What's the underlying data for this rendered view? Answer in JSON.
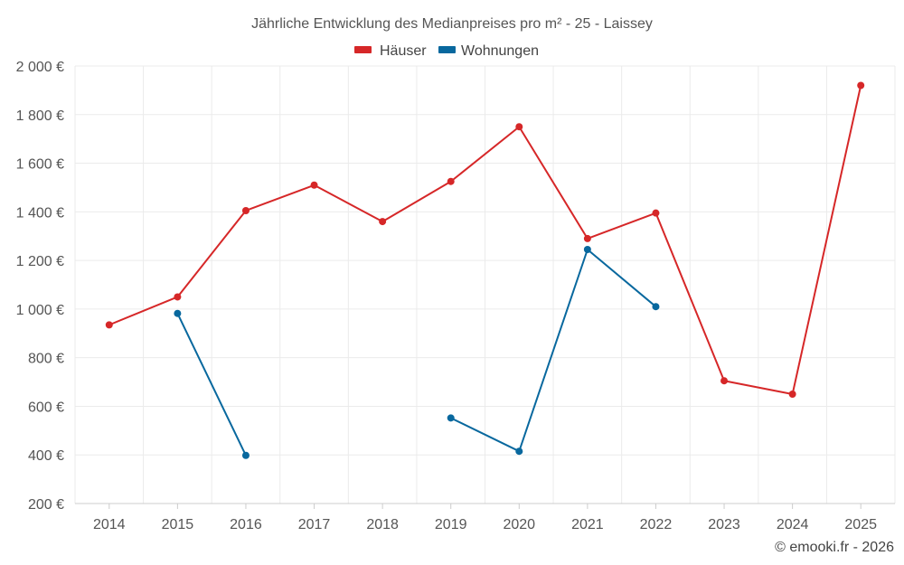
{
  "chart_data": {
    "type": "line",
    "title": "Jährliche Entwicklung des Medianpreises pro m² - 25 - Laissey",
    "categories": [
      "2014",
      "2015",
      "2016",
      "2017",
      "2018",
      "2019",
      "2020",
      "2021",
      "2022",
      "2023",
      "2024",
      "2025"
    ],
    "y_ticks": [
      "200 €",
      "400 €",
      "600 €",
      "800 €",
      "1 000 €",
      "1 200 €",
      "1 400 €",
      "1 600 €",
      "1 800 €",
      "2 000 €"
    ],
    "ylim": [
      200,
      2000
    ],
    "grid": true,
    "legend_position": "top-center",
    "series": [
      {
        "name": "Häuser",
        "color": "#d62728",
        "values": [
          935,
          1050,
          1405,
          1510,
          1360,
          1525,
          1750,
          1290,
          1395,
          705,
          650,
          1920
        ]
      },
      {
        "name": "Wohnungen",
        "color": "#08689e",
        "values": [
          null,
          982,
          398,
          null,
          null,
          552,
          415,
          1245,
          1010,
          null,
          null,
          null
        ]
      }
    ]
  },
  "credit": "© emooki.fr - 2026"
}
